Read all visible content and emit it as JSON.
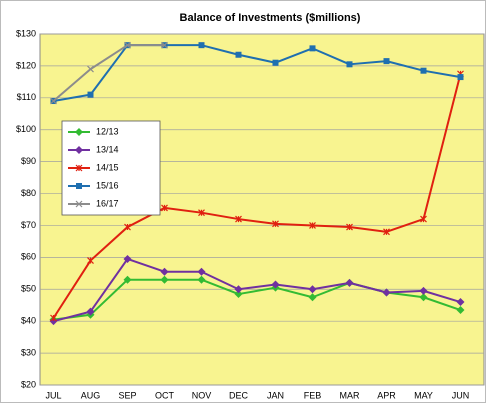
{
  "chart_data": {
    "type": "line",
    "title": "Balance of Investments ($millions)",
    "categories": [
      "JUL",
      "AUG",
      "SEP",
      "OCT",
      "NOV",
      "DEC",
      "JAN",
      "FEB",
      "MAR",
      "APR",
      "MAY",
      "JUN"
    ],
    "series": [
      {
        "name": "12/13",
        "color": "#33bb33",
        "marker": "diamond",
        "values": [
          40.5,
          42,
          53,
          53,
          53,
          48.5,
          50.5,
          47.5,
          52,
          49,
          47.5,
          43.5
        ]
      },
      {
        "name": "13/14",
        "color": "#7030a0",
        "marker": "diamond",
        "values": [
          40,
          43,
          59.5,
          55.5,
          55.5,
          50,
          51.5,
          50,
          52,
          49,
          49.5,
          46
        ]
      },
      {
        "name": "14/15",
        "color": "#e02010",
        "marker": "star",
        "values": [
          41,
          59,
          69.5,
          75.5,
          74,
          72,
          70.5,
          70,
          69.5,
          68,
          72,
          117.5
        ]
      },
      {
        "name": "15/16",
        "color": "#1f6fb0",
        "marker": "square",
        "values": [
          109,
          111,
          126.5,
          126.5,
          126.5,
          123.5,
          121,
          125.5,
          120.5,
          121.5,
          118.5,
          116.5
        ]
      },
      {
        "name": "16/17",
        "color": "#8c8c8c",
        "marker": "x",
        "values": [
          109,
          119,
          126.5,
          126.5,
          null,
          null,
          null,
          null,
          null,
          null,
          null,
          null
        ]
      }
    ],
    "ylim": [
      20,
      130
    ],
    "yticks": [
      {
        "value": 20,
        "label": "$20"
      },
      {
        "value": 30,
        "label": "$30"
      },
      {
        "value": 40,
        "label": "$40"
      },
      {
        "value": 50,
        "label": "$50"
      },
      {
        "value": 60,
        "label": "$60"
      },
      {
        "value": 70,
        "label": "$70"
      },
      {
        "value": 80,
        "label": "$80"
      },
      {
        "value": 90,
        "label": "$90"
      },
      {
        "value": 100,
        "label": "$100"
      },
      {
        "value": 110,
        "label": "$110"
      },
      {
        "value": 120,
        "label": "$120"
      },
      {
        "value": 130,
        "label": "$130"
      }
    ],
    "grid": true,
    "legend": "left"
  }
}
